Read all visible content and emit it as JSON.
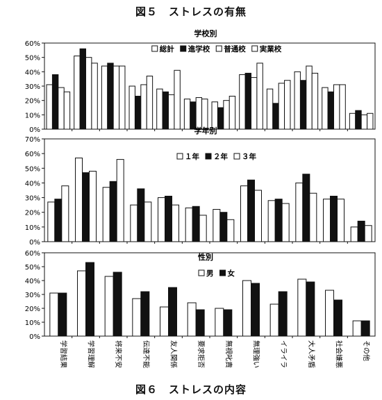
{
  "figures": {
    "top_title": "図５　ストレスの有無",
    "bottom_title": "図６　ストレスの内容"
  },
  "chart_data": [
    {
      "type": "bar",
      "title": "学校別",
      "categories": [
        "学習結果",
        "学習理解",
        "将来不安",
        "伝達不能",
        "友人関係",
        "要求拒否",
        "無視叱責",
        "無理強い",
        "イライラ",
        "大人矛盾",
        "社会嫌悪",
        "その他"
      ],
      "series": [
        {
          "name": "総計",
          "style": "white",
          "values": [
            31,
            51,
            44,
            30,
            28,
            21,
            19,
            38,
            28,
            40,
            29,
            11
          ]
        },
        {
          "name": "進学校",
          "style": "black",
          "values": [
            38,
            56,
            46,
            23,
            26,
            19,
            15,
            39,
            18,
            34,
            26,
            13
          ]
        },
        {
          "name": "普通校",
          "style": "white",
          "values": [
            29,
            50,
            44,
            31,
            24,
            22,
            20,
            36,
            32,
            44,
            31,
            10
          ]
        },
        {
          "name": "実業校",
          "style": "white",
          "values": [
            26,
            46,
            44,
            37,
            41,
            21,
            23,
            46,
            34,
            39,
            31,
            11
          ]
        }
      ],
      "ylim": [
        0,
        60
      ],
      "yticks": [
        "0%",
        "10%",
        "20%",
        "30%",
        "40%",
        "50%",
        "60%"
      ],
      "grid": false,
      "legend": "top"
    },
    {
      "type": "bar",
      "title": "学年別",
      "categories": [
        "学習結果",
        "学習理解",
        "将来不安",
        "伝達不能",
        "友人関係",
        "要求拒否",
        "無視叱責",
        "無理強い",
        "イライラ",
        "大人矛盾",
        "社会嫌悪",
        "その他"
      ],
      "series": [
        {
          "name": "１年",
          "style": "white",
          "values": [
            27,
            57,
            37,
            25,
            30,
            23,
            22,
            38,
            28,
            40,
            29,
            10
          ]
        },
        {
          "name": "２年",
          "style": "black",
          "values": [
            29,
            47,
            41,
            36,
            31,
            24,
            20,
            42,
            29,
            46,
            31,
            14
          ]
        },
        {
          "name": "３年",
          "style": "white",
          "values": [
            38,
            48,
            56,
            27,
            25,
            18,
            15,
            35,
            26,
            33,
            29,
            11
          ]
        }
      ],
      "ylim": [
        0,
        70
      ],
      "yticks": [
        "0%",
        "10%",
        "20%",
        "30%",
        "40%",
        "50%",
        "60%",
        "70%"
      ],
      "grid": false,
      "legend": "top"
    },
    {
      "type": "bar",
      "title": "性別",
      "categories": [
        "学習結果",
        "学習理解",
        "将来不安",
        "伝達不能",
        "友人関係",
        "要求拒否",
        "無視叱責",
        "無理強い",
        "イライラ",
        "大人矛盾",
        "社会嫌悪",
        "その他"
      ],
      "series": [
        {
          "name": "男",
          "style": "white",
          "values": [
            31,
            47,
            43,
            27,
            21,
            24,
            20,
            40,
            23,
            41,
            33,
            11
          ]
        },
        {
          "name": "女",
          "style": "black",
          "values": [
            31,
            53,
            46,
            32,
            35,
            19,
            19,
            38,
            32,
            39,
            26,
            11
          ]
        }
      ],
      "ylim": [
        0,
        60
      ],
      "yticks": [
        "0%",
        "10%",
        "20%",
        "30%",
        "40%",
        "50%",
        "60%"
      ],
      "grid": false,
      "legend": "top"
    }
  ]
}
